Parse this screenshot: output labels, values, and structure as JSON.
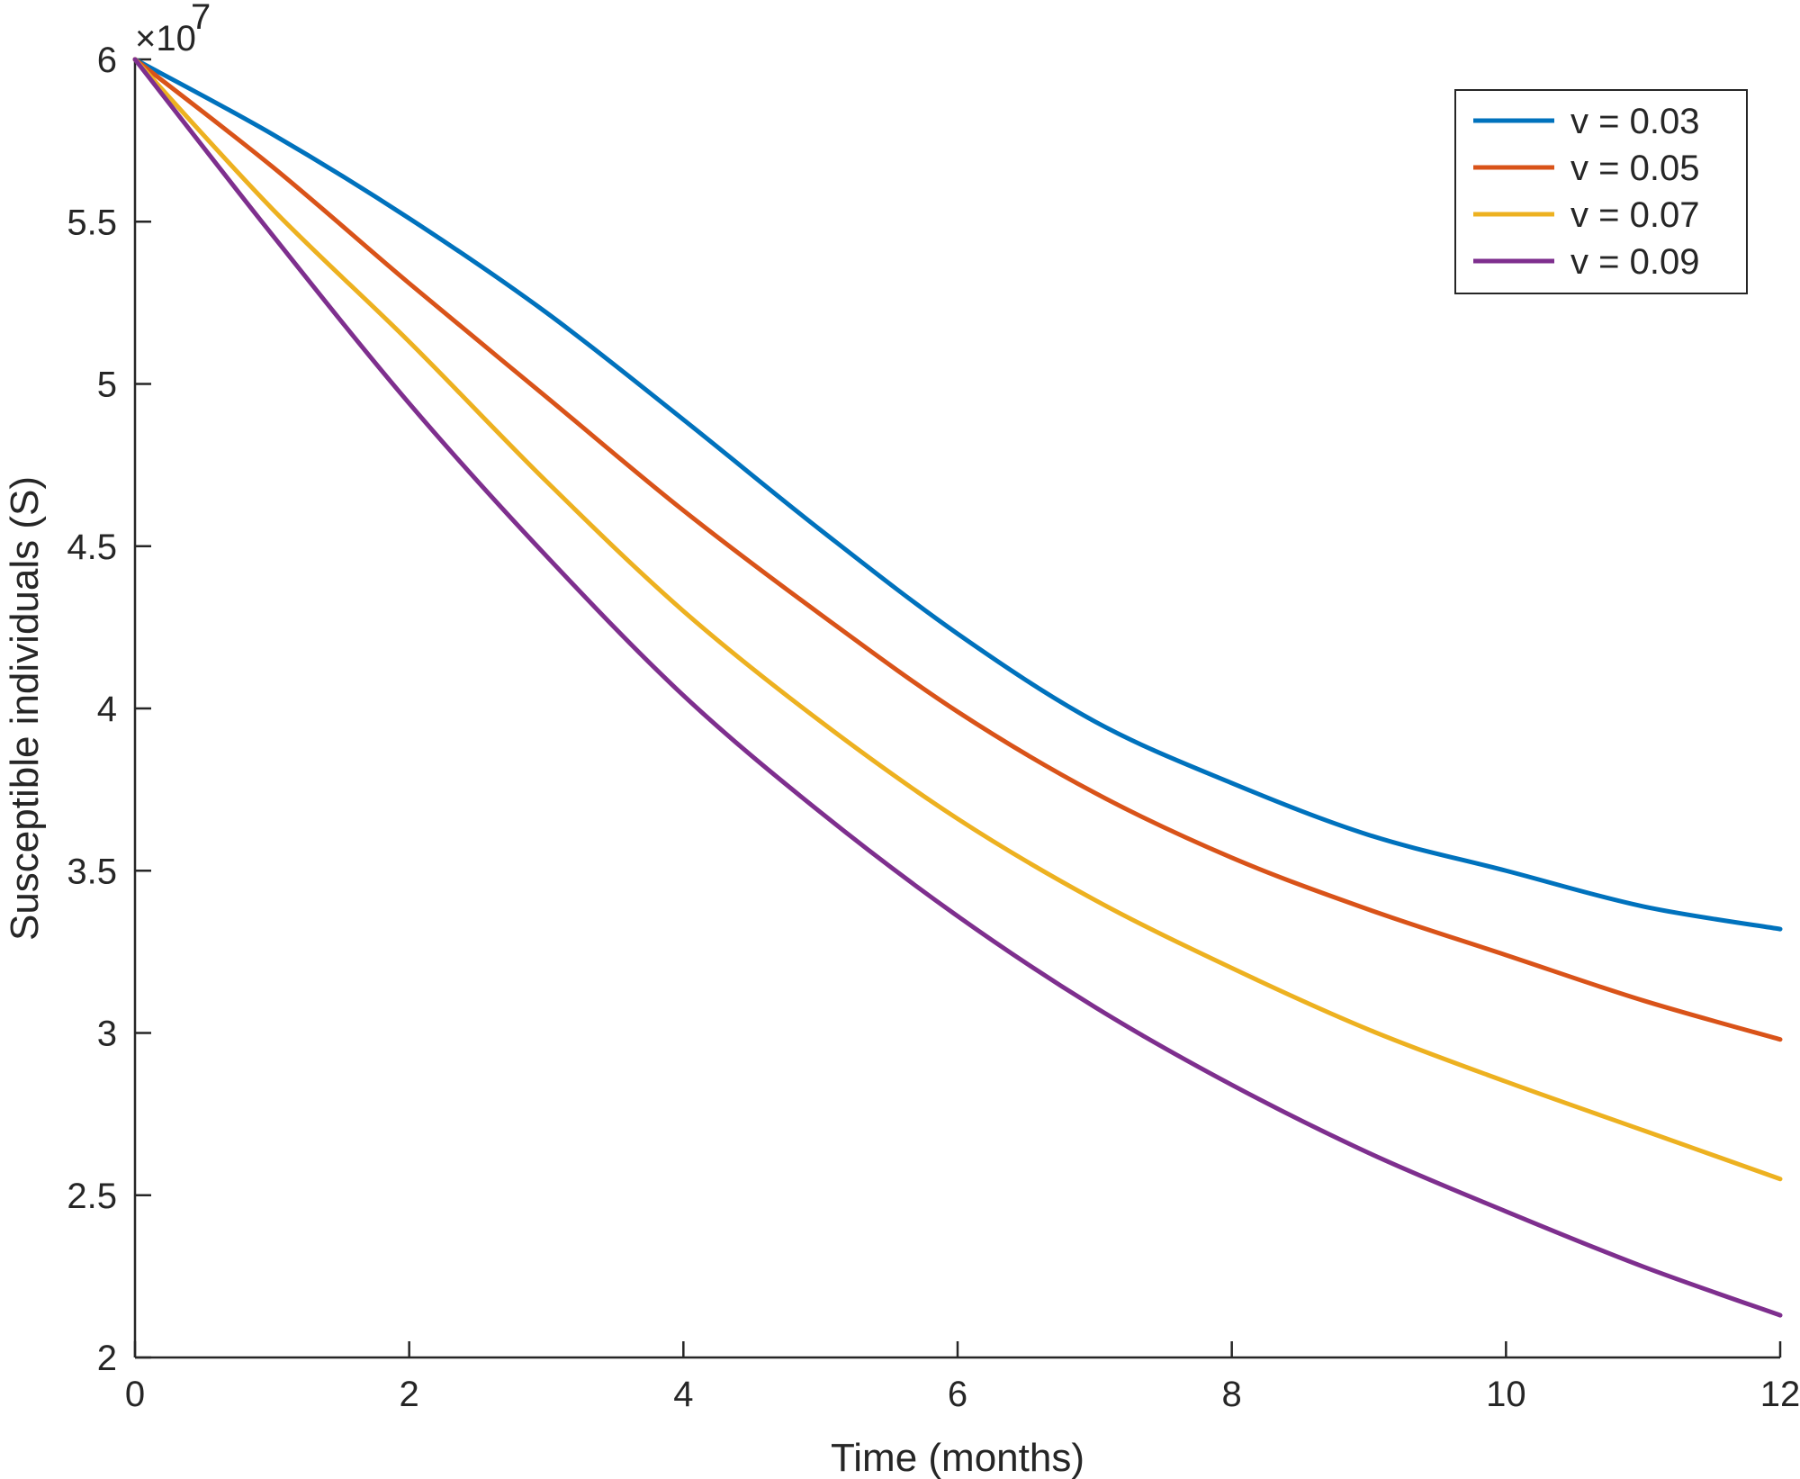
{
  "chart_data": {
    "type": "line",
    "title": "",
    "xlabel": "Time (months)",
    "ylabel": "Susceptible individuals (S)",
    "y_multiplier_label": "×10",
    "y_multiplier_exponent": "7",
    "xlim": [
      0,
      12
    ],
    "ylim": [
      2,
      6
    ],
    "xticks": [
      0,
      2,
      4,
      6,
      8,
      10,
      12
    ],
    "xtick_labels": [
      "0",
      "2",
      "4",
      "6",
      "8",
      "10",
      "12"
    ],
    "yticks": [
      2,
      2.5,
      3,
      3.5,
      4,
      4.5,
      5,
      5.5,
      6
    ],
    "ytick_labels": [
      "2",
      "2.5",
      "3",
      "3.5",
      "4",
      "4.5",
      "5",
      "5.5",
      "6"
    ],
    "grid": false,
    "legend_position": "top-right",
    "x": [
      0,
      1,
      2,
      3,
      4,
      5,
      6,
      7,
      8,
      9,
      10,
      11,
      12
    ],
    "series": [
      {
        "name": "v = 0.03",
        "color": "#0072BD",
        "values": [
          6.0,
          5.77,
          5.51,
          5.22,
          4.89,
          4.55,
          4.23,
          3.96,
          3.77,
          3.61,
          3.5,
          3.39,
          3.32
        ]
      },
      {
        "name": "v = 0.05",
        "color": "#D95319",
        "values": [
          6.0,
          5.67,
          5.31,
          4.96,
          4.61,
          4.29,
          3.99,
          3.74,
          3.54,
          3.38,
          3.24,
          3.1,
          2.98
        ]
      },
      {
        "name": "v = 0.07",
        "color": "#EDB120",
        "values": [
          6.0,
          5.54,
          5.13,
          4.7,
          4.3,
          3.96,
          3.66,
          3.41,
          3.2,
          3.01,
          2.85,
          2.7,
          2.55
        ]
      },
      {
        "name": "v = 0.09",
        "color": "#7E2F8E",
        "values": [
          6.0,
          5.46,
          4.94,
          4.47,
          4.04,
          3.68,
          3.36,
          3.08,
          2.84,
          2.63,
          2.45,
          2.28,
          2.13
        ]
      }
    ]
  }
}
